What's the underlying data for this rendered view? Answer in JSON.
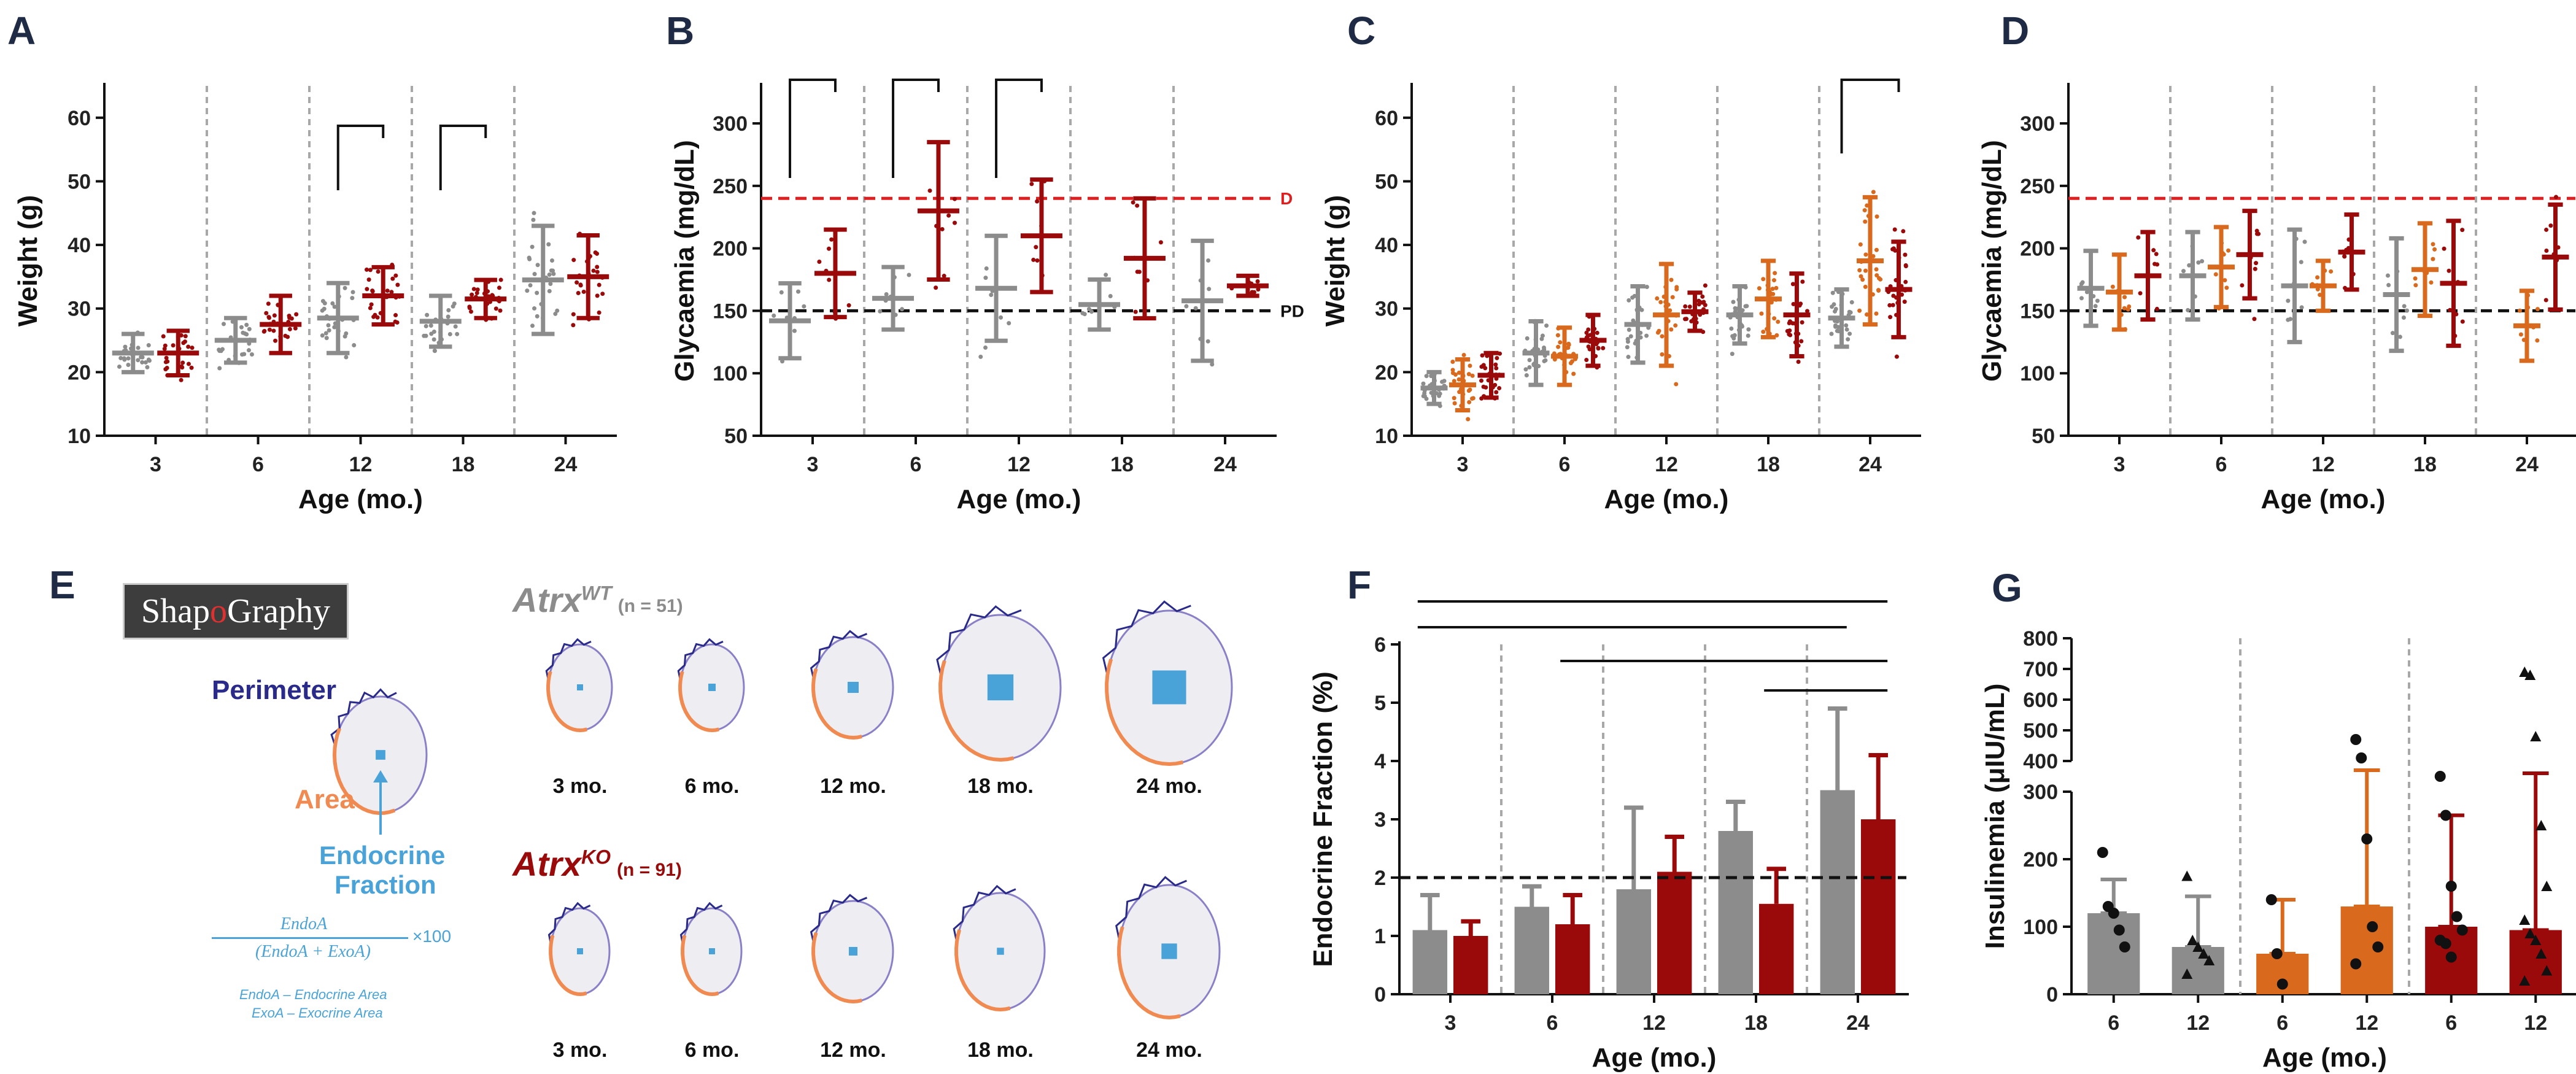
{
  "panel_labels": [
    "A",
    "B",
    "C",
    "D",
    "E",
    "F",
    "G"
  ],
  "colors": {
    "wt": "#8c8c8c",
    "ko": "#9b0a0a",
    "het": "#d96a1d",
    "diabetic": "#e02020",
    "prediabetic": "#111111",
    "perimeter": "#2a2a8a",
    "area": "#f08a50",
    "endocrine": "#4aa3d8",
    "islet_fill": "#eeeef2",
    "islet_edge": "#8a80c8"
  },
  "chart_data": [
    {
      "panel": "A",
      "type": "scatter",
      "ylabel": "Weight (g)",
      "xlabel": "Age (mo.)",
      "ylim": [
        10,
        65
      ],
      "yticks": [
        10,
        20,
        30,
        40,
        50,
        60
      ],
      "categories": [
        "3",
        "6",
        "12",
        "18",
        "24"
      ],
      "series": [
        {
          "name": "AtrxWT",
          "mean": [
            23,
            25,
            28.5,
            28,
            34.5
          ],
          "sd": [
            3,
            3.5,
            5.5,
            4,
            8.5
          ]
        },
        {
          "name": "AtrxKO",
          "mean": [
            23,
            27.5,
            32,
            31.5,
            35
          ],
          "sd": [
            3.5,
            4.5,
            4.5,
            3,
            6.5
          ]
        }
      ],
      "significance": [
        {
          "category": "12"
        },
        {
          "category": "18"
        }
      ]
    },
    {
      "panel": "B",
      "type": "scatter",
      "ylabel": "Glycaemia (mg/dL)",
      "xlabel": "Age (mo.)",
      "ylim": [
        50,
        330
      ],
      "yticks": [
        50,
        100,
        150,
        200,
        250,
        300
      ],
      "categories": [
        "3",
        "6",
        "12",
        "18",
        "24"
      ],
      "series": [
        {
          "name": "AtrxWT",
          "mean": [
            142,
            160,
            168,
            155,
            158
          ],
          "sd": [
            30,
            25,
            42,
            20,
            48
          ]
        },
        {
          "name": "AtrxKO",
          "mean": [
            180,
            230,
            210,
            192,
            170
          ],
          "sd": [
            35,
            55,
            45,
            48,
            8
          ]
        }
      ],
      "significance": [
        {
          "category": "3"
        },
        {
          "category": "6"
        },
        {
          "category": "12"
        }
      ],
      "reference_lines": [
        {
          "label": "D",
          "value": 240
        },
        {
          "label": "PD",
          "value": 150
        }
      ]
    },
    {
      "panel": "C",
      "type": "scatter",
      "ylabel": "Weight (g)",
      "xlabel": "Age (mo.)",
      "ylim": [
        10,
        65
      ],
      "yticks": [
        10,
        20,
        30,
        40,
        50,
        60
      ],
      "categories": [
        "3",
        "6",
        "12",
        "18",
        "24"
      ],
      "series": [
        {
          "name": "AtrxWT",
          "mean": [
            17.5,
            23,
            27.5,
            29,
            28.5
          ],
          "sd": [
            2.5,
            5,
            6,
            4.5,
            4.5
          ]
        },
        {
          "name": "AtrxHet",
          "mean": [
            18,
            22.5,
            29,
            31.5,
            37.5
          ],
          "sd": [
            4,
            4.5,
            8,
            6,
            10
          ]
        },
        {
          "name": "AtrxKO",
          "mean": [
            19.5,
            25,
            29.5,
            29,
            33
          ],
          "sd": [
            3.5,
            4,
            3,
            6.5,
            7.5
          ]
        }
      ],
      "significance": [
        {
          "category": "24"
        }
      ]
    },
    {
      "panel": "D",
      "type": "scatter",
      "ylabel": "Glycaemia (mg/dL)",
      "xlabel": "Age (mo.)",
      "ylim": [
        50,
        330
      ],
      "yticks": [
        50,
        100,
        150,
        200,
        250,
        300
      ],
      "categories": [
        "3",
        "6",
        "12",
        "18",
        "24"
      ],
      "series": [
        {
          "name": "AtrxWT",
          "mean": [
            168,
            178,
            170,
            163,
            null
          ],
          "sd": [
            30,
            35,
            45,
            45,
            null
          ]
        },
        {
          "name": "AtrxHet",
          "mean": [
            165,
            185,
            170,
            183,
            138
          ],
          "sd": [
            30,
            32,
            20,
            37,
            28
          ]
        },
        {
          "name": "AtrxKO",
          "mean": [
            178,
            195,
            197,
            172,
            193
          ],
          "sd": [
            35,
            35,
            30,
            50,
            42
          ]
        }
      ],
      "reference_lines": [
        {
          "label": "D",
          "value": 240
        },
        {
          "label": "PD",
          "value": 150
        }
      ]
    },
    {
      "panel": "F",
      "type": "bar",
      "ylabel": "Endocrine Fraction (%)",
      "xlabel": "Age (mo.)",
      "ylim": [
        0,
        6
      ],
      "yticks": [
        0,
        1,
        2,
        3,
        4,
        5,
        6
      ],
      "categories": [
        "3",
        "6",
        "12",
        "18",
        "24"
      ],
      "series": [
        {
          "name": "AtrxWT",
          "values": [
            1.1,
            1.5,
            1.8,
            2.8,
            3.5
          ],
          "sd": [
            0.6,
            0.35,
            1.4,
            0.5,
            1.4
          ]
        },
        {
          "name": "AtrxKO",
          "values": [
            1.0,
            1.2,
            2.1,
            1.55,
            3.0
          ],
          "sd": [
            0.25,
            0.5,
            0.6,
            0.6,
            1.1
          ]
        }
      ],
      "reference_lines": [
        {
          "value": 2
        }
      ],
      "significance_bars": [
        [
          "3-WT",
          "24-KO"
        ],
        [
          "3-WT",
          "24-WT"
        ],
        [
          "6-KO",
          "24-KO"
        ],
        [
          "18-KO",
          "24-KO"
        ]
      ]
    },
    {
      "panel": "G",
      "type": "bar",
      "ylabel": "Insulinemia (μIU/mL)",
      "xlabel": "Age (mo.)",
      "y_axis_broken": true,
      "yticks_lower": [
        0,
        100,
        200,
        300
      ],
      "yticks_upper": [
        400,
        500,
        600,
        700,
        800
      ],
      "categories": [
        "6",
        "12",
        "6",
        "12",
        "6",
        "12"
      ],
      "groups": [
        {
          "name": "AtrxWT",
          "value": 120,
          "sd": 50,
          "points": [
            210,
            130,
            120,
            95,
            70
          ]
        },
        {
          "name": "AtrxWT",
          "value": 70,
          "sd": 75,
          "points": [
            175,
            80,
            70,
            60,
            50,
            30
          ]
        },
        {
          "name": "AtrxHet",
          "value": 60,
          "sd": 80,
          "points": [
            140,
            60,
            15
          ]
        },
        {
          "name": "AtrxHet",
          "value": 130,
          "sd": 240,
          "points": [
            470,
            410,
            230,
            100,
            70,
            45
          ]
        },
        {
          "name": "AtrxKO",
          "value": 100,
          "sd": 165,
          "points": [
            350,
            265,
            160,
            115,
            95,
            80,
            75,
            55
          ]
        },
        {
          "name": "AtrxKO",
          "value": 95,
          "sd": 265,
          "points": [
            690,
            680,
            480,
            250,
            160,
            110,
            90,
            80,
            60,
            35,
            20
          ]
        }
      ]
    }
  ],
  "panel_e": {
    "logo": {
      "prefix": "Shap",
      "o": "o",
      "suffix": "Graphy"
    },
    "legend": {
      "perimeter": "Perimeter",
      "area": "Area",
      "endocrine": "Endocrine",
      "fraction": "Fraction"
    },
    "formula": {
      "numerator": "EndoA",
      "denominator": "(EndoA + ExoA)",
      "multiplier": "×100"
    },
    "definitions": [
      "EndoA – Endocrine Area",
      "ExoA – Exocrine Area"
    ],
    "groups": [
      {
        "name": "Atrx",
        "sup": "WT",
        "n": "(n = 51)",
        "labels": [
          "3 mo.",
          "6 mo.",
          "12 mo.",
          "18 mo.",
          "24 mo."
        ]
      },
      {
        "name": "Atrx",
        "sup": "KO",
        "n": "(n = 91)",
        "labels": [
          "3 mo.",
          "6 mo.",
          "12 mo.",
          "18 mo.",
          "24 mo."
        ]
      }
    ],
    "endocrine_fraction_pct": [
      [
        1.1,
        1.5,
        1.8,
        2.8,
        3.5
      ],
      [
        1.0,
        1.2,
        2.1,
        1.55,
        3.0
      ]
    ]
  }
}
